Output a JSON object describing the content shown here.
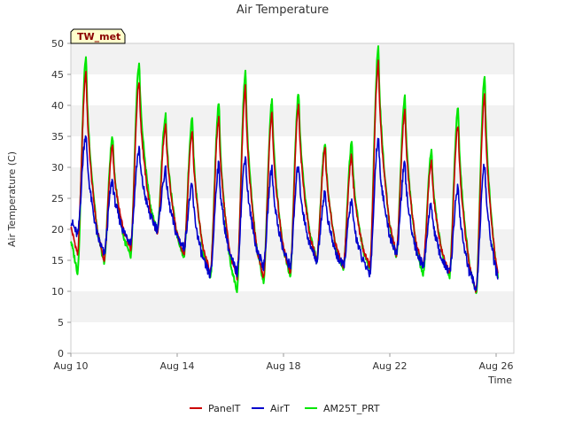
{
  "chart_data": {
    "type": "line",
    "title": "Air Temperature",
    "xlabel": "Time",
    "ylabel": "Air Temperature (C)",
    "site_label": "TW_met",
    "x_ticks": [
      "Aug 10",
      "Aug 14",
      "Aug 18",
      "Aug 22",
      "Aug 26"
    ],
    "y_ticks": [
      0,
      5,
      10,
      15,
      20,
      25,
      30,
      35,
      40,
      45,
      50
    ],
    "xlim": [
      "Aug 10",
      "Aug 27"
    ],
    "ylim": [
      0,
      50
    ],
    "grid": "horizontal bands",
    "legend_position": "bottom",
    "x": [
      "Aug 10",
      "Aug 11",
      "Aug 12",
      "Aug 13",
      "Aug 14",
      "Aug 15",
      "Aug 16",
      "Aug 17",
      "Aug 18",
      "Aug 19",
      "Aug 20",
      "Aug 21",
      "Aug 22",
      "Aug 23",
      "Aug 24",
      "Aug 25",
      "Aug 26"
    ],
    "series": [
      {
        "name": "PanelT",
        "color": "#cc0000",
        "daily_min": [
          16,
          15,
          17,
          19,
          16,
          13,
          12,
          12,
          13,
          15,
          14,
          14,
          16,
          14,
          13,
          10,
          9.5
        ],
        "daily_max": [
          45.5,
          33.5,
          44,
          37,
          36,
          38,
          43,
          39,
          40,
          33,
          32,
          47,
          39,
          31,
          37,
          42,
          42
        ]
      },
      {
        "name": "AirT",
        "color": "#0000cc",
        "daily_min": [
          19,
          16,
          18,
          20,
          17,
          12.5,
          13,
          14,
          14,
          15,
          14,
          13,
          16,
          14,
          13,
          10.5,
          10
        ],
        "daily_max": [
          35.5,
          28,
          33,
          29.5,
          27,
          30.5,
          32,
          30,
          30.5,
          26,
          24.5,
          35,
          30.5,
          24,
          27,
          30.5,
          30.5
        ]
      },
      {
        "name": "AM25T_PRT",
        "color": "#00e600",
        "daily_min": [
          13,
          14.5,
          15.5,
          19.5,
          15.5,
          12,
          10,
          11.5,
          12.5,
          15,
          13.5,
          13.5,
          15.5,
          12.5,
          12.5,
          9.5,
          8.5
        ],
        "daily_max": [
          48,
          35,
          47,
          38.5,
          38,
          40.5,
          45.5,
          41,
          42,
          34,
          34,
          49.5,
          41.5,
          32.5,
          40,
          45,
          45
        ]
      }
    ]
  }
}
